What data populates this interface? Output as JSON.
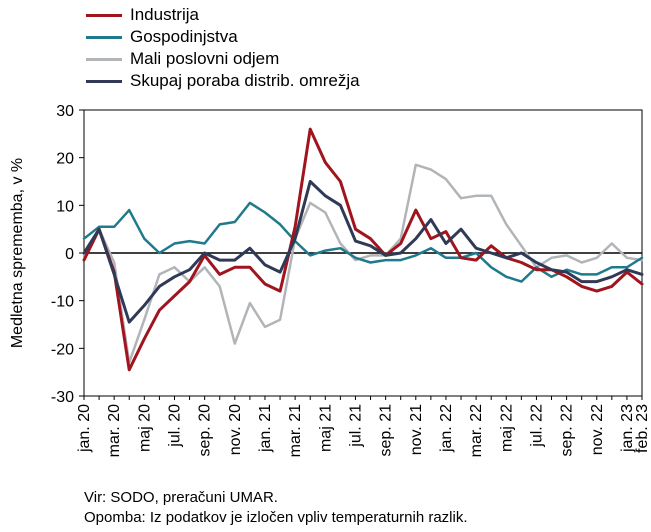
{
  "chart_data": {
    "type": "line",
    "ylabel": "Medletna sprememba, v %",
    "ylim": [
      -30,
      30
    ],
    "yticks": [
      -30,
      -20,
      -10,
      0,
      10,
      20,
      30
    ],
    "x": [
      "jan. 20",
      "feb. 20",
      "mar. 20",
      "apr. 20",
      "maj 20",
      "jun. 20",
      "jul. 20",
      "avg. 20",
      "sep. 20",
      "okt. 20",
      "nov. 20",
      "dec. 20",
      "jan. 21",
      "feb. 21",
      "mar. 21",
      "apr. 21",
      "maj 21",
      "jun. 21",
      "jul. 21",
      "avg. 21",
      "sep. 21",
      "okt. 21",
      "nov. 21",
      "dec. 21",
      "jan. 22",
      "feb. 22",
      "mar. 22",
      "apr. 22",
      "maj 22",
      "jun. 22",
      "jul. 22",
      "avg. 22",
      "sep. 22",
      "okt. 22",
      "nov. 22",
      "dec. 22",
      "jan. 23",
      "feb. 23"
    ],
    "tick_labels": [
      "jan. 20",
      "mar. 20",
      "maj 20",
      "jul. 20",
      "sep. 20",
      "nov. 20",
      "jan. 21",
      "mar. 21",
      "maj 21",
      "jul. 21",
      "sep. 21",
      "nov. 21",
      "jan. 22",
      "mar. 22",
      "maj 22",
      "jul. 22",
      "sep. 22",
      "nov. 22",
      "jan. 23",
      "feb. 23"
    ],
    "tick_indices": [
      0,
      2,
      4,
      6,
      8,
      10,
      12,
      14,
      16,
      18,
      20,
      22,
      24,
      26,
      28,
      30,
      32,
      34,
      36,
      37
    ],
    "series": [
      {
        "name": "Industrija",
        "color": "#a0141e",
        "values": [
          -1.5,
          5,
          -4,
          -24.5,
          -18,
          -12,
          -9,
          -6,
          -0.5,
          -4.5,
          -3,
          -3,
          -6.5,
          -8,
          5.5,
          26,
          19,
          15,
          5,
          3,
          -0.5,
          2,
          9,
          3,
          4.5,
          -1,
          -1.5,
          1.5,
          -1,
          -2,
          -3.5,
          -3.5,
          -5,
          -7,
          -8,
          -7,
          -4,
          -6.5
        ]
      },
      {
        "name": "Gospodinjstva",
        "color": "#1f7a8c",
        "values": [
          3,
          5.5,
          5.5,
          9,
          3,
          0,
          2,
          2.5,
          2,
          6,
          6.5,
          10.5,
          8.5,
          6,
          2.5,
          -0.5,
          0.5,
          1,
          -1,
          -2,
          -1.5,
          -1.5,
          -0.5,
          1,
          -1,
          -1,
          0,
          -3,
          -5,
          -6,
          -3,
          -5,
          -3.5,
          -4.5,
          -4.5,
          -3,
          -3,
          -1
        ]
      },
      {
        "name": "Mali poslovni odjem",
        "color": "#b2b5b8",
        "values": [
          -0.5,
          5,
          -2,
          -23,
          -14,
          -4.5,
          -3,
          -6,
          -3,
          -7,
          -19,
          -10.5,
          -15.5,
          -14,
          3,
          10.5,
          8.5,
          2,
          -1.5,
          -0.5,
          -0.5,
          3,
          18.5,
          17.5,
          15.5,
          11.5,
          12,
          12,
          6,
          1.5,
          -3,
          -1,
          -0.5,
          -2,
          -1,
          2,
          -1,
          -1.5
        ]
      },
      {
        "name": "Skupaj poraba distrib. omrežja",
        "color": "#303a56",
        "values": [
          0,
          5,
          -4.5,
          -14.5,
          -11,
          -7,
          -5,
          -3.5,
          0,
          -1.5,
          -1.5,
          1,
          -2.5,
          -4,
          3,
          15,
          12,
          10,
          2.5,
          1.5,
          -0.5,
          0,
          3,
          7,
          2,
          5,
          1,
          0,
          -1,
          0,
          -2,
          -3.5,
          -4,
          -6,
          -6,
          -5,
          -3.5,
          -4.5
        ]
      }
    ]
  },
  "footnotes": {
    "source": "Vir: SODO, preračuni UMAR.",
    "note": "Opomba: Iz podatkov je izločen vpliv temperaturnih razlik."
  }
}
